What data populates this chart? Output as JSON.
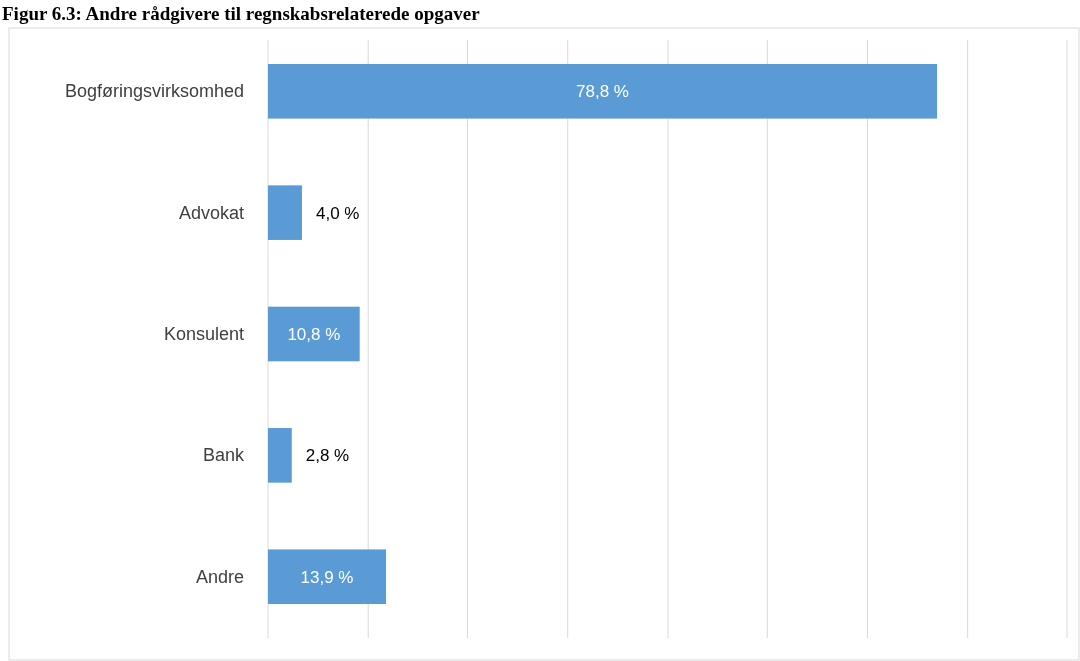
{
  "chart_data": {
    "type": "bar",
    "orientation": "horizontal",
    "title": "Figur 6.3: Andre rådgivere til regnskabsrelaterede opgaver",
    "categories": [
      "Bogføringsvirksomhed",
      "Advokat",
      "Konsulent",
      "Bank",
      "Andre"
    ],
    "values": [
      78.8,
      4.0,
      10.8,
      2.8,
      13.9
    ],
    "value_labels": [
      "78,8 %",
      "4,0 %",
      "10,8 %",
      "2,8 %",
      "13,9 %"
    ],
    "color": "#5b9bd5",
    "xlim": [
      0,
      94.1
    ],
    "xticks": [
      {
        "value": 0,
        "label": null
      },
      {
        "value": 11.8,
        "label": null
      },
      {
        "value": 23.5,
        "label": null
      },
      {
        "value": 35.3,
        "label": null
      },
      {
        "value": 47.1,
        "label": null
      },
      {
        "value": 58.8,
        "label": null
      },
      {
        "value": 70.6,
        "label": null
      },
      {
        "value": 82.4,
        "label": null
      },
      {
        "value": 94.1,
        "label": null
      }
    ],
    "grid": "x"
  }
}
